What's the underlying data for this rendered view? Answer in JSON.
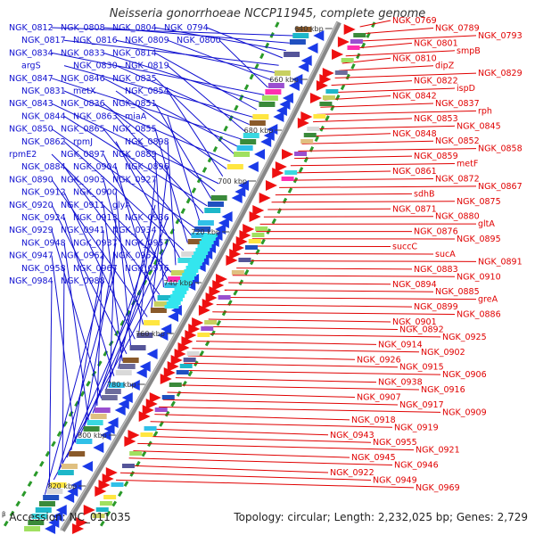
{
  "title": "Neisseria gonorrhoeae NCCP11945, complete genome",
  "footer": {
    "mark": "β",
    "accession": "Accession: NC_011035",
    "summary": "Topology: circular; Length: 2,232,025 bp; Genes: 2,729"
  },
  "colors": {
    "left_label": "#1010d0",
    "right_label": "#e00000",
    "backbone": "#888888",
    "dots": "#2a9a2a"
  },
  "kbp_ticks": [
    "640 kbp",
    "660 kbp",
    "680 kbp",
    "700 kbp",
    "720 kbp",
    "740 kbp",
    "760 kbp",
    "780 kbp",
    "800 kbp",
    "820 kbp"
  ],
  "left_labels": [
    "NGK_0812",
    "NGK_0808",
    "NGK_0804",
    "NGK_0794",
    "NGK_0817",
    "NGK_0816",
    "NGK_0809",
    "NGK_0800",
    "NGK_0834",
    "NGK_0833",
    "NGK_0814",
    "argS",
    "NGK_0830",
    "NGK_0819",
    "NGK_0847",
    "NGK_0846",
    "NGK_0835",
    "NGK_0831",
    "metX",
    "NGK_0854",
    "NGK_0843",
    "NGK_0836",
    "NGK_0851",
    "NGK_0844",
    "NGK_0863",
    "miaA",
    "NGK_0850",
    "NGK_0865",
    "NGK_0855",
    "NGK_0862",
    "rpmJ",
    "NGK_0898",
    "rpmE2",
    "NGK_0897",
    "NGK_0889",
    "NGK_0884",
    "NGK_0904",
    "NGK_0896",
    "NGK_0890",
    "NGK_0903",
    "NGK_0927",
    "NGK_0912",
    "NGK_0900",
    "NGK_0920",
    "NGK_0911",
    "glyA",
    "NGK_0924",
    "NGK_0913",
    "NGK_0936",
    "NGK_0929",
    "NGK_0941",
    "NGK_0934",
    "NGK_0948",
    "NGK_0937",
    "NGK_0957",
    "NGK_0947",
    "NGK_0962",
    "NGK_0953",
    "NGK_0958",
    "NGK_0967",
    "NGK_0976",
    "NGK_0984",
    "NGK_0988"
  ],
  "right_labels": [
    "NGK_0769",
    "NGK_0789",
    "NGK_0793",
    "NGK_0801",
    "smpB",
    "NGK_0810",
    "dipZ",
    "NGK_0829",
    "NGK_0822",
    "ispD",
    "NGK_0842",
    "NGK_0837",
    "rph",
    "NGK_0853",
    "NGK_0845",
    "NGK_0848",
    "NGK_0852",
    "NGK_0858",
    "NGK_0859",
    "metF",
    "NGK_0861",
    "NGK_0872",
    "NGK_0867",
    "sdhB",
    "NGK_0875",
    "NGK_0871",
    "NGK_0880",
    "gltA",
    "NGK_0876",
    "NGK_0895",
    "succC",
    "sucA",
    "NGK_0891",
    "NGK_0883",
    "NGK_0910",
    "NGK_0894",
    "NGK_0885",
    "greA",
    "NGK_0899",
    "NGK_0886",
    "NGK_0901",
    "NGK_0892",
    "NGK_0925",
    "NGK_0914",
    "NGK_0902",
    "NGK_0926",
    "NGK_0915",
    "NGK_0906",
    "NGK_0938",
    "NGK_0916",
    "NGK_0907",
    "NGK_0917",
    "NGK_0909",
    "NGK_0918",
    "NGK_0919",
    "NGK_0943",
    "NGK_0955",
    "NGK_0921",
    "NGK_0945",
    "NGK_0946",
    "NGK_0922",
    "NGK_0949",
    "NGK_0969"
  ]
}
